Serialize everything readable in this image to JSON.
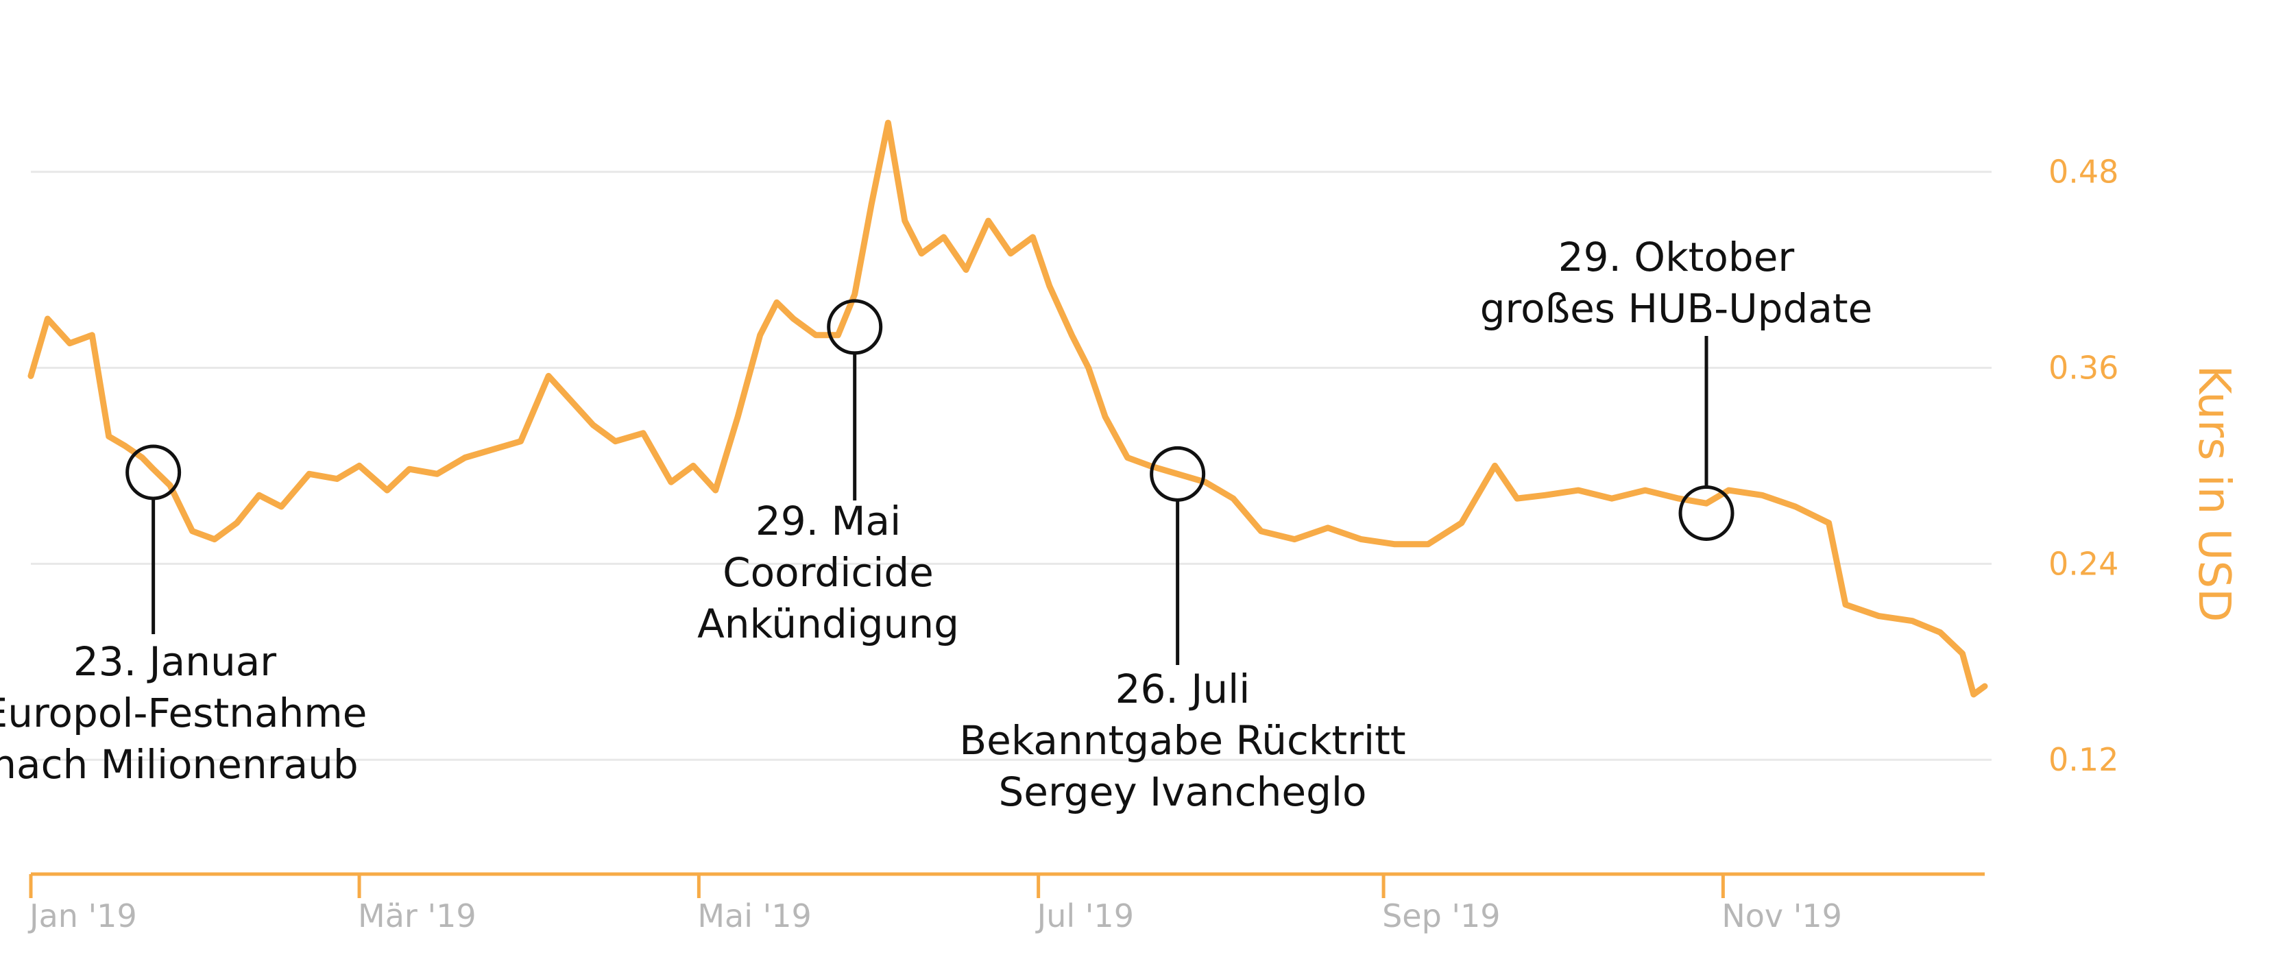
{
  "chart_data": {
    "type": "line",
    "ylabel": "Kurs in USD",
    "ylim": [
      0.05,
      0.56
    ],
    "y_ticks": [
      "0.12",
      "0.24",
      "0.36",
      "0.48"
    ],
    "grid": true,
    "x_ticks": [
      "Jan '19",
      "Mär '19",
      "Mai '19",
      "Jul '19",
      "Sep '19",
      "Nov '19"
    ],
    "x_tick_dates": [
      "2019-01-01",
      "2019-03-01",
      "2019-05-01",
      "2019-07-01",
      "2019-09-01",
      "2019-11-01"
    ],
    "x_range": [
      "2019-01-01",
      "2019-12-18"
    ],
    "series": [
      {
        "color": "#f7ab47",
        "x": [
          "2019-01-01",
          "2019-01-04",
          "2019-01-08",
          "2019-01-12",
          "2019-01-15",
          "2019-01-18",
          "2019-01-21",
          "2019-01-23",
          "2019-01-26",
          "2019-01-30",
          "2019-02-03",
          "2019-02-07",
          "2019-02-11",
          "2019-02-15",
          "2019-02-20",
          "2019-02-25",
          "2019-03-01",
          "2019-03-06",
          "2019-03-10",
          "2019-03-15",
          "2019-03-20",
          "2019-03-25",
          "2019-03-30",
          "2019-04-04",
          "2019-04-08",
          "2019-04-12",
          "2019-04-16",
          "2019-04-21",
          "2019-04-26",
          "2019-04-30",
          "2019-05-04",
          "2019-05-08",
          "2019-05-12",
          "2019-05-15",
          "2019-05-18",
          "2019-05-22",
          "2019-05-26",
          "2019-05-29",
          "2019-06-01",
          "2019-06-04",
          "2019-06-07",
          "2019-06-10",
          "2019-06-14",
          "2019-06-18",
          "2019-06-22",
          "2019-06-26",
          "2019-06-30",
          "2019-07-03",
          "2019-07-07",
          "2019-07-10",
          "2019-07-13",
          "2019-07-17",
          "2019-07-21",
          "2019-07-26",
          "2019-07-31",
          "2019-08-05",
          "2019-08-10",
          "2019-08-16",
          "2019-08-22",
          "2019-08-28",
          "2019-09-03",
          "2019-09-09",
          "2019-09-15",
          "2019-09-21",
          "2019-09-25",
          "2019-09-30",
          "2019-10-06",
          "2019-10-12",
          "2019-10-18",
          "2019-10-24",
          "2019-10-29",
          "2019-11-02",
          "2019-11-08",
          "2019-11-14",
          "2019-11-20",
          "2019-11-23",
          "2019-11-29",
          "2019-12-05",
          "2019-12-10",
          "2019-12-14",
          "2019-12-16",
          "2019-12-18"
        ],
        "y": [
          0.355,
          0.39,
          0.375,
          0.38,
          0.318,
          0.312,
          0.305,
          0.298,
          0.288,
          0.26,
          0.255,
          0.265,
          0.282,
          0.275,
          0.295,
          0.292,
          0.3,
          0.285,
          0.298,
          0.295,
          0.305,
          0.31,
          0.315,
          0.355,
          0.34,
          0.325,
          0.315,
          0.32,
          0.29,
          0.3,
          0.285,
          0.33,
          0.38,
          0.4,
          0.39,
          0.38,
          0.38,
          0.405,
          0.46,
          0.51,
          0.45,
          0.43,
          0.44,
          0.42,
          0.45,
          0.43,
          0.44,
          0.41,
          0.38,
          0.36,
          0.33,
          0.305,
          0.3,
          0.295,
          0.29,
          0.28,
          0.26,
          0.255,
          0.262,
          0.255,
          0.252,
          0.252,
          0.265,
          0.3,
          0.28,
          0.282,
          0.285,
          0.28,
          0.285,
          0.28,
          0.277,
          0.285,
          0.282,
          0.275,
          0.265,
          0.215,
          0.208,
          0.205,
          0.198,
          0.185,
          0.16,
          0.165
        ]
      }
    ],
    "annotations": [
      {
        "date": "2019-01-23",
        "value": 0.296,
        "lines": [
          "23. Januar",
          "Europol-Festnahme",
          "nach Milionenraub"
        ]
      },
      {
        "date": "2019-05-29",
        "value": 0.385,
        "lines": [
          "29. Mai",
          "Coordicide",
          "Ankündigung"
        ]
      },
      {
        "date": "2019-07-26",
        "value": 0.295,
        "lines": [
          "26. Juli",
          "Bekanntgabe Rücktritt",
          "Sergey Ivancheglo"
        ]
      },
      {
        "date": "2019-10-29",
        "value": 0.271,
        "lines": [
          "29. Oktober",
          "großes HUB-Update"
        ]
      }
    ]
  }
}
